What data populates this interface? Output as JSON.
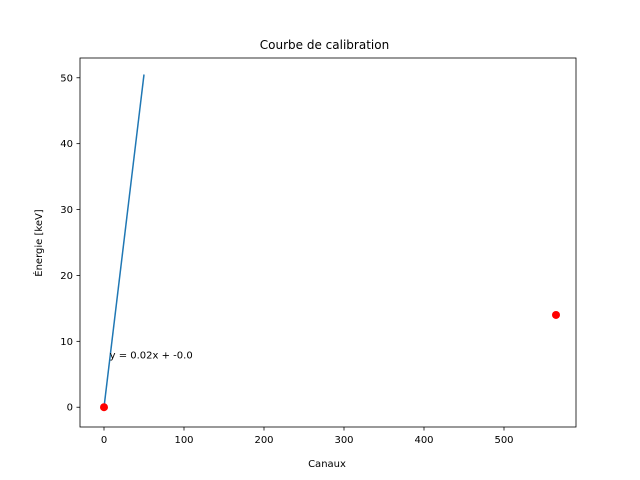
{
  "chart_data": {
    "type": "line",
    "title": "Courbe de calibration",
    "xlabel": "Canaux",
    "ylabel": "Énergie [keV]",
    "xlim": [
      -30,
      590
    ],
    "ylim": [
      -3,
      53
    ],
    "xticks": [
      0,
      100,
      200,
      300,
      400,
      500
    ],
    "yticks": [
      0,
      10,
      20,
      30,
      40,
      50
    ],
    "grid": false,
    "series": [
      {
        "kind": "line",
        "color": "#1f77b4",
        "x": [
          0,
          50
        ],
        "y": [
          0.0,
          50.5
        ]
      },
      {
        "kind": "scatter",
        "color": "#ff0000",
        "x": [
          0,
          565
        ],
        "y": [
          0,
          14
        ]
      }
    ],
    "annotations": [
      {
        "text": "y = 0.02x + -0.0",
        "x": 7,
        "y": 8
      }
    ]
  }
}
